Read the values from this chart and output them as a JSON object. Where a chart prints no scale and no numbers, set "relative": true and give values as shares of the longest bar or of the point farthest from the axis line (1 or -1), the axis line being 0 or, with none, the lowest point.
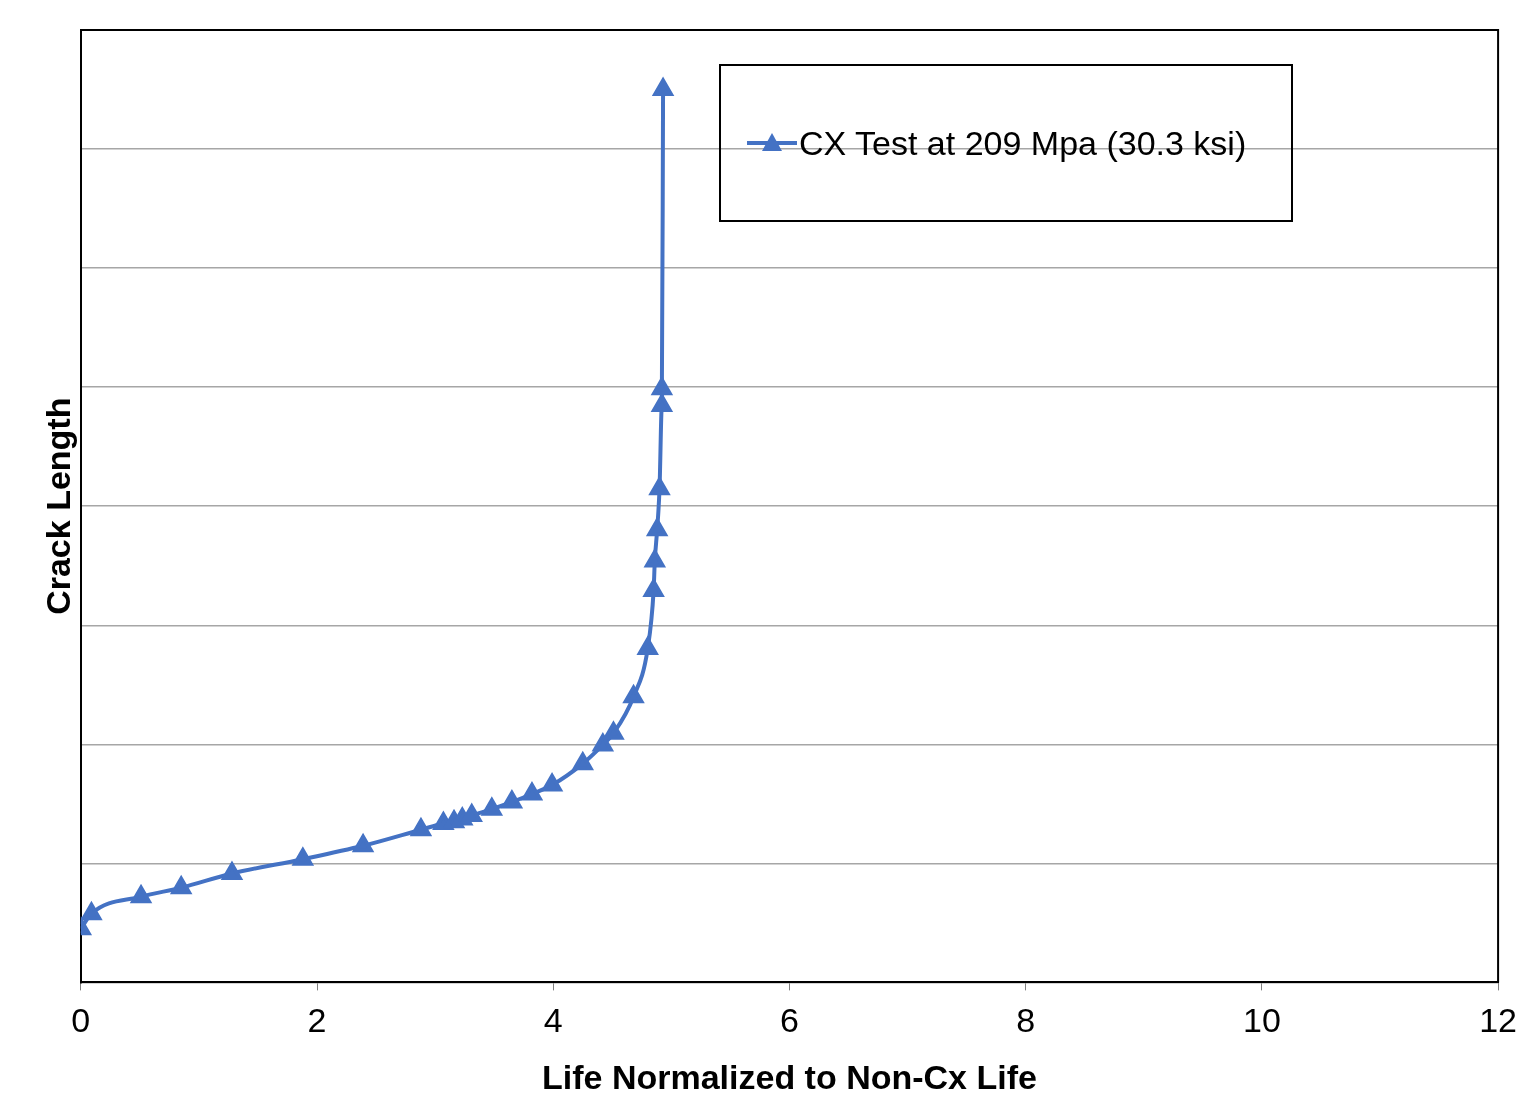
{
  "chart_data": {
    "type": "line",
    "xlabel": "Life Normalized to Non-Cx Life",
    "ylabel": "Crack Length",
    "relative": true,
    "xlim": [
      0,
      12
    ],
    "xticks": [
      0,
      2,
      4,
      6,
      8,
      10,
      12
    ],
    "grid": "y",
    "legend": "top right",
    "marker": "triangle",
    "line_style": "solid",
    "x": [
      0,
      0.09,
      0.51,
      0.85,
      1.28,
      1.88,
      2.39,
      2.88,
      3.07,
      3.16,
      3.23,
      3.31,
      3.48,
      3.65,
      3.82,
      3.99,
      4.25,
      4.42,
      4.51,
      4.68,
      4.8,
      4.85,
      4.86,
      4.88,
      4.9,
      4.92,
      4.92,
      4.93
    ],
    "series": [
      {
        "name": "CX Test at 209 Mpa (30.3 ksi)",
        "color": "#4472c4",
        "values": [
          0.06,
          0.077,
          0.096,
          0.106,
          0.122,
          0.138,
          0.153,
          0.171,
          0.178,
          0.18,
          0.183,
          0.187,
          0.194,
          0.202,
          0.211,
          0.221,
          0.245,
          0.266,
          0.279,
          0.32,
          0.374,
          0.439,
          0.472,
          0.507,
          0.553,
          0.646,
          0.665,
          1
        ]
      }
    ]
  }
}
